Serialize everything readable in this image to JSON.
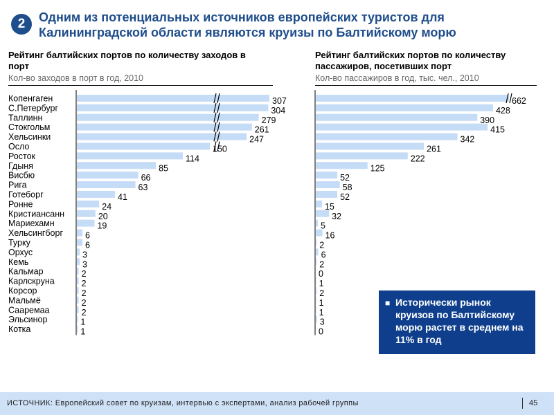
{
  "header": {
    "number": "2",
    "title_line1": "Одним из потенциальных источников европейских туристов для",
    "title_line2": "Калининградской области являются круизы по Балтийскому морю"
  },
  "left": {
    "title_line1": "Рейтинг балтийских портов по количеству заходов в",
    "title_line2": "порт",
    "subtitle": "Кол-во заходов в порт в год, 2010"
  },
  "right": {
    "title_line1": "Рейтинг балтийских портов по количеству",
    "title_line2": "пассажиров, посетивших порт",
    "subtitle": "Кол-во пассажиров в год, тыс. чел., 2010"
  },
  "note": {
    "bullet": "■",
    "text": "Исторически рынок круизов по Балтийскому морю растет в среднем на 11% в год"
  },
  "footer": {
    "source": "ИСТОЧНИК:  Европейский совет по круизам, интервью с экспертами, анализ рабочей группы",
    "page": "45"
  },
  "colors": {
    "bar": "#c5dcf7",
    "title": "#1f4e8c",
    "note_bg": "#0f3f8c",
    "footer_bg": "#cfe1f7"
  },
  "chart_data": [
    {
      "type": "bar",
      "orientation": "horizontal",
      "axis_break": true,
      "title": "Рейтинг балтийских портов по количеству заходов в порт",
      "subtitle": "Кол-во заходов в порт в год, 2010",
      "categories": [
        "Копенгаген",
        "С.Петербург",
        "Таллинн",
        "Стокгольм",
        "Хельсинки",
        "Осло",
        "Росток",
        "Гдыня",
        "Висбю",
        "Рига",
        "Готеборг",
        "Ронне",
        "Кристиансанн",
        "Мариехамн",
        "Хельсингборг",
        "Турку",
        "Орхус",
        "Кемь",
        "Кальмар",
        "Карлскруна",
        "Корсор",
        "Мальмё",
        "Сааремаа",
        "Эльсинор",
        "Котка"
      ],
      "values": [
        307,
        304,
        279,
        261,
        247,
        150,
        114,
        85,
        66,
        63,
        41,
        24,
        20,
        19,
        6,
        6,
        3,
        3,
        2,
        2,
        2,
        2,
        2,
        1,
        1
      ]
    },
    {
      "type": "bar",
      "orientation": "horizontal",
      "axis_break": true,
      "title": "Рейтинг балтийских портов по количеству пассажиров, посетивших порт",
      "subtitle": "Кол-во пассажиров в год, тыс. чел., 2010",
      "categories": [
        "Копенгаген",
        "С.Петербург",
        "Таллинн",
        "Стокгольм",
        "Хельсинки",
        "Осло",
        "Росток",
        "Гдыня",
        "Висбю",
        "Рига",
        "Готеборг",
        "Ронне",
        "Кристиансанн",
        "Мариехамн",
        "Хельсингборг",
        "Турку",
        "Орхус",
        "Кемь",
        "Кальмар",
        "Карлскруна",
        "Корсор",
        "Мальмё",
        "Сааремаа",
        "Эльсинор",
        "Котка"
      ],
      "values": [
        662,
        428,
        390,
        415,
        342,
        261,
        222,
        125,
        52,
        58,
        52,
        15,
        32,
        5,
        16,
        2,
        6,
        2,
        0,
        1,
        2,
        1,
        1,
        3,
        0
      ]
    }
  ]
}
